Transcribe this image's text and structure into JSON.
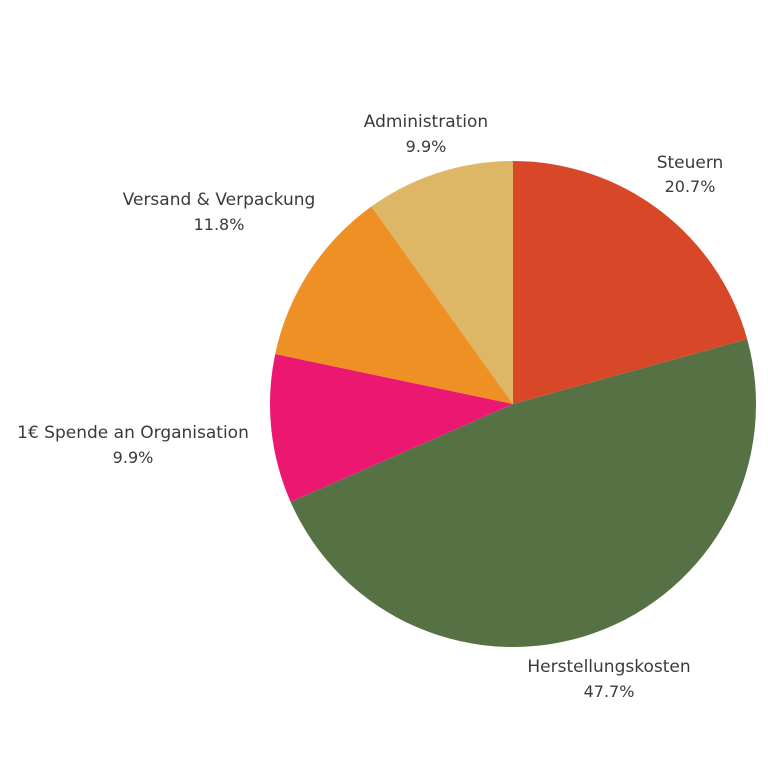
{
  "chart_data": {
    "type": "pie",
    "title": "",
    "slices": [
      {
        "label": "Steuern",
        "percent": 20.7,
        "value_text": "20.7%",
        "color": "#D84727"
      },
      {
        "label": "Herstellungskosten",
        "percent": 47.7,
        "value_text": "47.7%",
        "color": "#567245"
      },
      {
        "label": "1€ Spende an Organisation",
        "percent": 9.9,
        "value_text": "9.9%",
        "color": "#EB1771"
      },
      {
        "label": "Versand & Verpackung",
        "percent": 11.8,
        "value_text": "11.8%",
        "color": "#EF9024"
      },
      {
        "label": "Administration",
        "percent": 9.9,
        "value_text": "9.9%",
        "color": "#DDB766"
      }
    ],
    "start_angle": "12 o'clock",
    "direction": "clockwise",
    "legend": "none"
  }
}
